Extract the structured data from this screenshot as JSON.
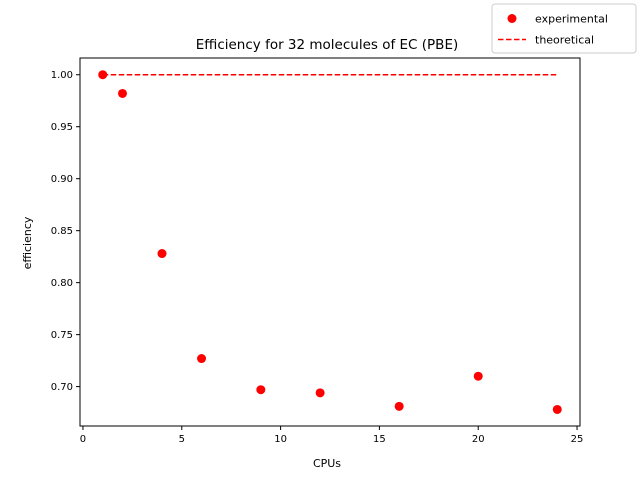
{
  "chart_data": {
    "type": "scatter",
    "title": "Efficiency for 32 molecules of EC (PBE)",
    "xlabel": "CPUs",
    "ylabel": "efficiency",
    "xlim": [
      -0.15,
      25.15
    ],
    "ylim": [
      0.6621,
      1.0161
    ],
    "xticks": [
      0,
      5,
      10,
      15,
      20,
      25
    ],
    "yticks": [
      0.7,
      0.75,
      0.8,
      0.85,
      0.9,
      0.95,
      1.0
    ],
    "xtick_labels": [
      "0",
      "5",
      "10",
      "15",
      "20",
      "25"
    ],
    "ytick_labels": [
      "0.70",
      "0.75",
      "0.80",
      "0.85",
      "0.90",
      "0.95",
      "1.00"
    ],
    "grid": false,
    "legend_position": "top-right",
    "series": [
      {
        "name": "experimental",
        "kind": "scatter",
        "color": "#ff0000",
        "x": [
          1,
          2,
          4,
          6,
          9,
          12,
          16,
          20,
          24
        ],
        "y": [
          1.0,
          0.982,
          0.828,
          0.727,
          0.697,
          0.694,
          0.681,
          0.71,
          0.678
        ]
      },
      {
        "name": "theoretical",
        "kind": "line",
        "style": "dashed",
        "color": "#ff0000",
        "x": [
          1,
          24
        ],
        "y": [
          1.0,
          1.0
        ]
      }
    ]
  }
}
